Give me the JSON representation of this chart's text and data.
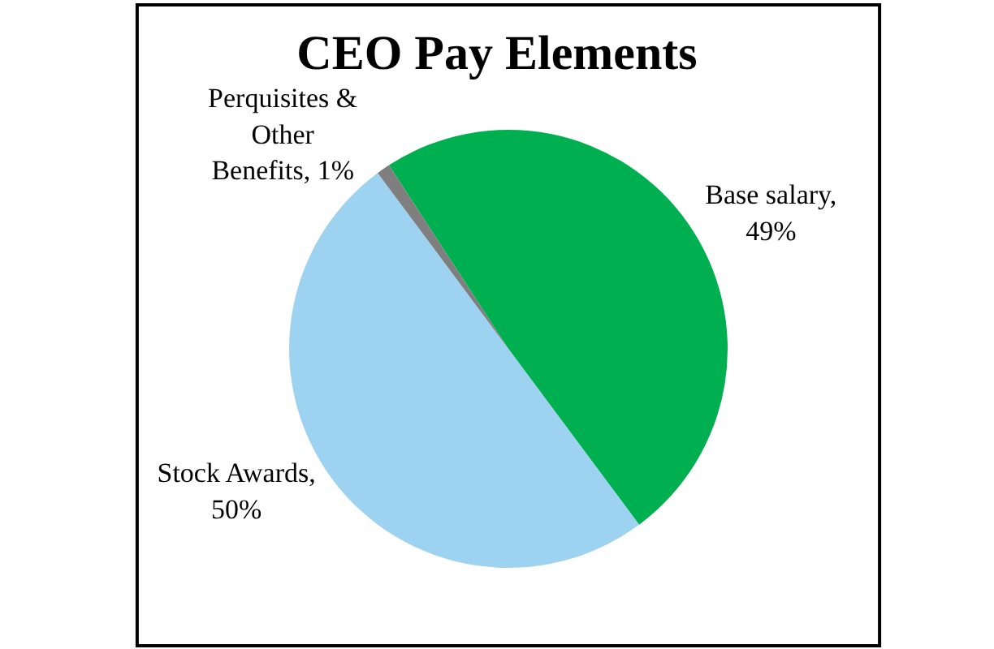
{
  "chart_data": {
    "type": "pie",
    "title": "CEO Pay Elements",
    "categories": [
      "Base salary, 49%",
      "Stock Awards, 50%",
      "Perquisites & Other Benefits, 1%"
    ],
    "values": [
      49,
      50,
      1
    ],
    "colors": [
      "#00b050",
      "#9dd3f1",
      "#7f7f7f"
    ],
    "legend": false
  }
}
